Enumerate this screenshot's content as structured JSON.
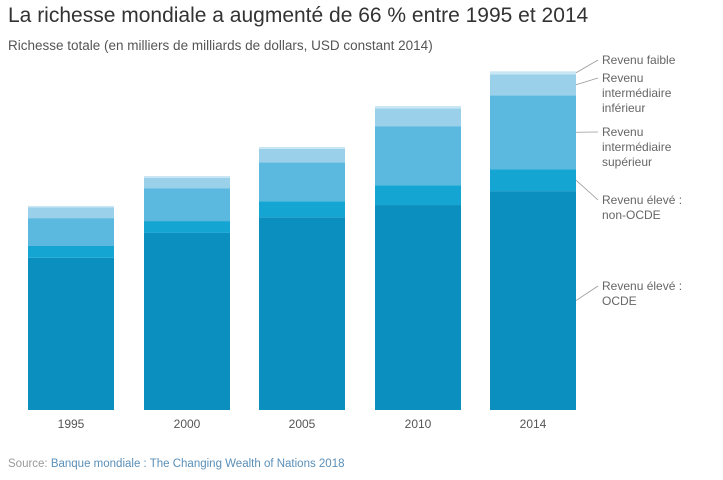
{
  "title": "La richesse mondiale a augmenté de 66 % entre 1995 et 2014",
  "subtitle": "Richesse totale (en milliers de milliards de dollars, USD constant 2014)",
  "source": {
    "prefix": "Source: ",
    "text": "Banque mondiale : The Changing Wealth of Nations 2018"
  },
  "chart_data": {
    "type": "bar",
    "stacked": true,
    "title": "La richesse mondiale a augmenté de 66 % entre 1995 et 2014",
    "ylabel": "Richesse totale (en milliers de milliards de dollars, USD constant 2014)",
    "categories": [
      "1995",
      "2000",
      "2005",
      "2010",
      "2014"
    ],
    "grid": false,
    "legend": "right",
    "series": [
      {
        "name": "Revenu élevé : OCDE",
        "lines": [
          "Revenu élevé :",
          "OCDE"
        ],
        "color": "#0a8fbf",
        "values": [
          513,
          597,
          650,
          691,
          738
        ]
      },
      {
        "name": "Revenu élevé : non-OCDE",
        "lines": [
          "Revenu élevé :",
          "non-OCDE"
        ],
        "color": "#15a5d3",
        "values": [
          40,
          40,
          54,
          67,
          74
        ]
      },
      {
        "name": "Revenu intermédiaire supérieur",
        "lines": [
          "Revenu",
          "intermédiaire",
          "supérieur"
        ],
        "color": "#5bb9e0",
        "values": [
          94,
          111,
          131,
          199,
          249
        ]
      },
      {
        "name": "Revenu intermédiaire inférieur",
        "lines": [
          "Revenu",
          "intermédiaire",
          "inférieur"
        ],
        "color": "#9bd0eb",
        "values": [
          36,
          35,
          45,
          60,
          71
        ]
      },
      {
        "name": "Revenu faible",
        "lines": [
          "Revenu faible"
        ],
        "color": "#c8e6f4",
        "values": [
          5,
          6,
          7,
          8,
          10
        ]
      }
    ]
  }
}
